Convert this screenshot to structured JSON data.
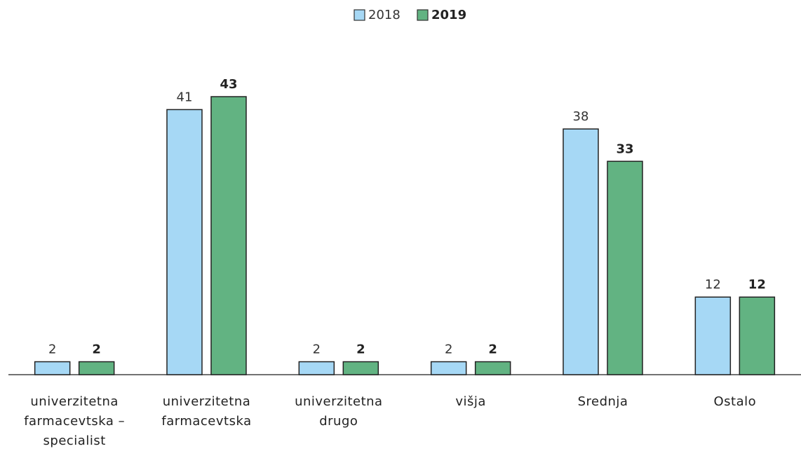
{
  "chart_data": {
    "type": "bar",
    "categories": [
      "univerzitetna farmacevtska – specialist",
      "univerzitetna farmacevtska",
      "univerzitetna drugo",
      "višja",
      "Srednja",
      "Ostalo"
    ],
    "series": [
      {
        "name": "2018",
        "color": "#a6d8f5",
        "values": [
          2,
          41,
          2,
          2,
          38,
          12
        ]
      },
      {
        "name": "2019",
        "color": "#62b382",
        "values": [
          2,
          43,
          2,
          2,
          33,
          12
        ]
      }
    ],
    "legend": "top"
  }
}
